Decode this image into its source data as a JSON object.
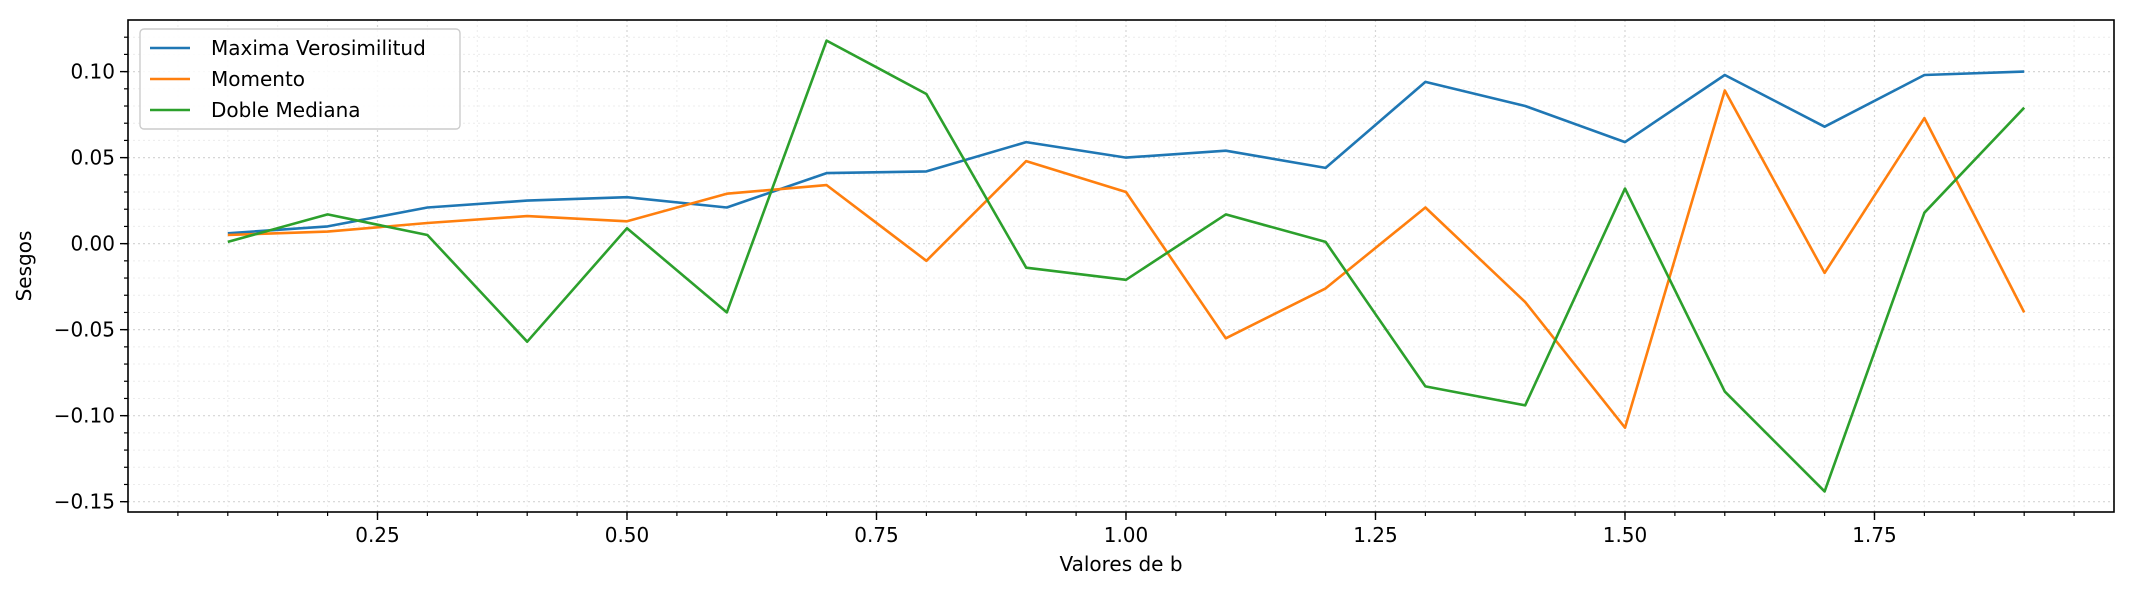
{
  "chart_data": {
    "type": "line",
    "xlabel": "Valores de b",
    "ylabel": "Sesgos",
    "xlim": [
      0.0,
      1.99
    ],
    "ylim": [
      -0.156,
      0.13
    ],
    "grid": true,
    "legend_position": "top-left",
    "x": [
      0.1,
      0.2,
      0.3,
      0.4,
      0.5,
      0.6,
      0.7,
      0.8,
      0.9,
      1.0,
      1.1,
      1.2,
      1.3,
      1.4,
      1.5,
      1.6,
      1.7,
      1.8,
      1.9
    ],
    "x_ticks": [
      0.25,
      0.5,
      0.75,
      1.0,
      1.25,
      1.5,
      1.75
    ],
    "x_tick_labels": [
      "0.25",
      "0.50",
      "0.75",
      "1.00",
      "1.25",
      "1.50",
      "1.75"
    ],
    "y_ticks": [
      0.1,
      0.05,
      0.0,
      -0.05,
      -0.1,
      -0.15
    ],
    "y_tick_labels": [
      "0.10",
      "0.05",
      "0.00",
      "−0.05",
      "−0.10",
      "−0.15"
    ],
    "series": [
      {
        "name": "Maxima Verosimilitud",
        "color": "#1f77b4",
        "values": [
          0.006,
          0.01,
          0.021,
          0.025,
          0.027,
          0.021,
          0.041,
          0.042,
          0.059,
          0.05,
          0.054,
          0.044,
          0.094,
          0.08,
          0.059,
          0.098,
          0.068,
          0.098,
          0.1
        ]
      },
      {
        "name": "Momento",
        "color": "#ff7f0e",
        "values": [
          0.005,
          0.007,
          0.012,
          0.016,
          0.013,
          0.029,
          0.034,
          -0.01,
          0.048,
          0.03,
          -0.055,
          -0.026,
          0.021,
          -0.034,
          -0.107,
          0.089,
          -0.017,
          0.073,
          -0.04
        ]
      },
      {
        "name": "Doble Mediana",
        "color": "#2ca02c",
        "values": [
          0.001,
          0.017,
          0.005,
          -0.057,
          0.009,
          -0.04,
          0.118,
          0.087,
          -0.014,
          -0.021,
          0.017,
          0.001,
          -0.083,
          -0.094,
          0.032,
          -0.086,
          -0.144,
          0.018,
          0.079
        ]
      }
    ]
  }
}
